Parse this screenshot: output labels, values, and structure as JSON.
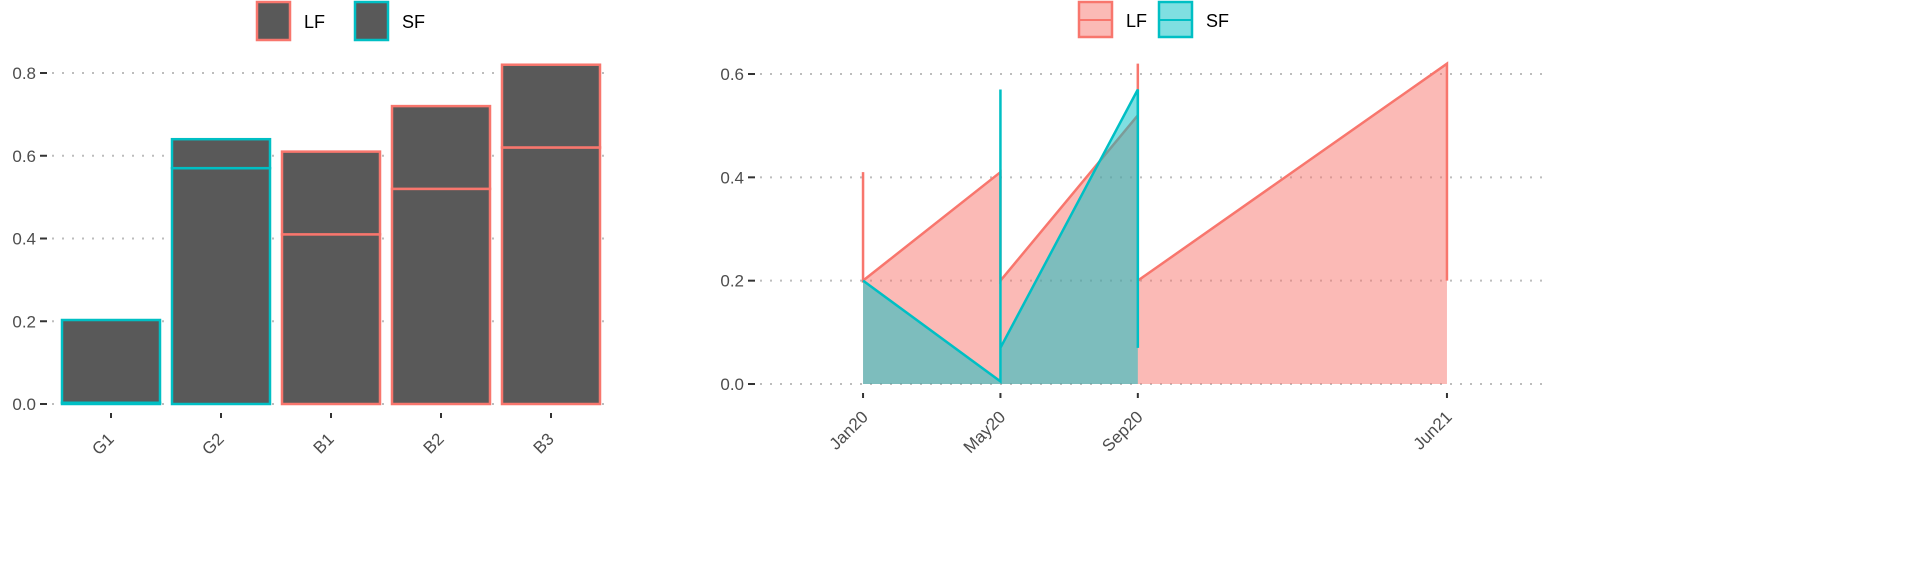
{
  "colors": {
    "LF": "#F8766D",
    "SF": "#00BFC4",
    "bar_fill": "#595959",
    "lf_fill": "#F8766D",
    "sf_fill": "#00BFC4"
  },
  "chart_data": [
    {
      "type": "bar",
      "stacked": true,
      "legend": {
        "placement": "top",
        "entries": [
          "LF",
          "SF"
        ]
      },
      "categories": [
        "G1",
        "G2",
        "B1",
        "B2",
        "B3"
      ],
      "group": [
        "SF",
        "SF",
        "LF",
        "LF",
        "LF"
      ],
      "segments": [
        [
          0.003,
          0.2
        ],
        [
          0.57,
          0.07
        ],
        [
          0.41,
          0.2
        ],
        [
          0.52,
          0.2
        ],
        [
          0.62,
          0.2
        ]
      ],
      "ylim": [
        0,
        0.85
      ],
      "yticks": [
        "0.0",
        "0.2",
        "0.4",
        "0.6",
        "0.8"
      ],
      "grid": "horizontal dotted",
      "xlabel": "",
      "ylabel": ""
    },
    {
      "type": "area",
      "legend": {
        "placement": "top",
        "entries": [
          "LF",
          "SF"
        ]
      },
      "xticks": [
        {
          "date": "2020-01",
          "label": "Jan20"
        },
        {
          "date": "2020-05",
          "label": "May20"
        },
        {
          "date": "2020-09",
          "label": "Sep20"
        },
        {
          "date": "2021-06",
          "label": "Jun21"
        }
      ],
      "xlim": [
        "2019-10",
        "2021-09"
      ],
      "ylim": [
        0,
        0.63
      ],
      "yticks": [
        "0.0",
        "0.2",
        "0.4",
        "0.6"
      ],
      "grid": "horizontal dotted",
      "series": [
        {
          "name": "LF",
          "points": [
            [
              "2020-01",
              0.41
            ],
            [
              "2020-01",
              0.2
            ],
            [
              "2020-05",
              0.41
            ],
            [
              "2020-05",
              0.2
            ],
            [
              "2020-09",
              0.52
            ],
            [
              "2020-09",
              0.62
            ],
            [
              "2020-09",
              0.2
            ],
            [
              "2021-06",
              0.62
            ],
            [
              "2021-06",
              0.2
            ]
          ]
        },
        {
          "name": "SF",
          "points": [
            [
              "2020-01",
              0.2
            ],
            [
              "2020-05",
              0.005
            ],
            [
              "2020-05",
              0.57
            ],
            [
              "2020-05",
              0.07
            ],
            [
              "2020-09",
              0.57
            ],
            [
              "2020-09",
              0.07
            ]
          ]
        }
      ],
      "xlabel": "",
      "ylabel": ""
    }
  ]
}
